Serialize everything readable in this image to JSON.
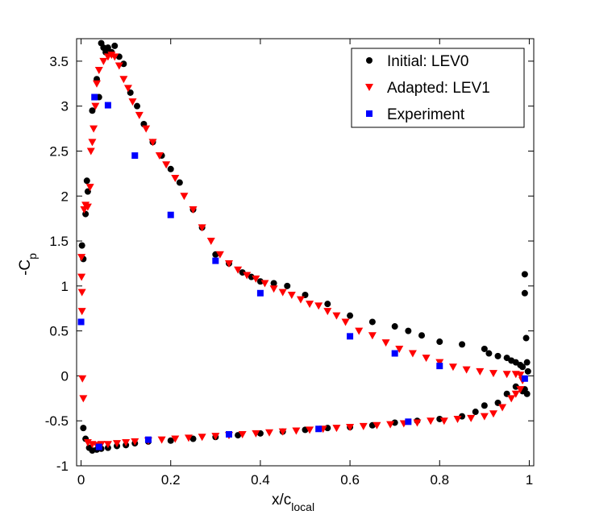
{
  "chart_data": {
    "type": "scatter",
    "xlabel": "x/c",
    "xlabel_sub": "local",
    "ylabel": "-C",
    "ylabel_sub": "p",
    "xlim": [
      -0.01,
      1.01
    ],
    "ylim": [
      -1,
      3.75
    ],
    "xticks": [
      0,
      0.2,
      0.4,
      0.6,
      0.8,
      1
    ],
    "xtick_labels": [
      "0",
      "0.2",
      "0.4",
      "0.6",
      "0.8",
      "1"
    ],
    "yticks": [
      -1,
      -0.5,
      0,
      0.5,
      1,
      1.5,
      2,
      2.5,
      3,
      3.5
    ],
    "ytick_labels": [
      "-1",
      "-0.5",
      "0",
      "0.5",
      "1",
      "1.5",
      "2",
      "2.5",
      "3",
      "3.5"
    ],
    "legend_position": "top-right",
    "series": [
      {
        "name": "Initial: LEV0",
        "marker": "circle",
        "color": "#000000",
        "points": [
          [
            0.002,
            1.45
          ],
          [
            0.005,
            1.3
          ],
          [
            0.01,
            1.8
          ],
          [
            0.013,
            2.17
          ],
          [
            0.015,
            2.05
          ],
          [
            0.025,
            2.95
          ],
          [
            0.035,
            3.3
          ],
          [
            0.04,
            3.1
          ],
          [
            0.045,
            3.7
          ],
          [
            0.05,
            3.65
          ],
          [
            0.055,
            3.6
          ],
          [
            0.06,
            3.65
          ],
          [
            0.068,
            3.6
          ],
          [
            0.075,
            3.67
          ],
          [
            0.085,
            3.55
          ],
          [
            0.095,
            3.47
          ],
          [
            0.11,
            3.15
          ],
          [
            0.125,
            3.0
          ],
          [
            0.14,
            2.8
          ],
          [
            0.16,
            2.6
          ],
          [
            0.18,
            2.45
          ],
          [
            0.2,
            2.3
          ],
          [
            0.22,
            2.15
          ],
          [
            0.25,
            1.85
          ],
          [
            0.27,
            1.65
          ],
          [
            0.3,
            1.35
          ],
          [
            0.33,
            1.25
          ],
          [
            0.36,
            1.15
          ],
          [
            0.38,
            1.1
          ],
          [
            0.4,
            1.05
          ],
          [
            0.43,
            1.03
          ],
          [
            0.46,
            1.0
          ],
          [
            0.5,
            0.9
          ],
          [
            0.55,
            0.8
          ],
          [
            0.6,
            0.67
          ],
          [
            0.65,
            0.6
          ],
          [
            0.7,
            0.55
          ],
          [
            0.73,
            0.5
          ],
          [
            0.76,
            0.45
          ],
          [
            0.8,
            0.38
          ],
          [
            0.85,
            0.35
          ],
          [
            0.9,
            0.3
          ],
          [
            0.91,
            0.25
          ],
          [
            0.93,
            0.22
          ],
          [
            0.95,
            0.2
          ],
          [
            0.96,
            0.17
          ],
          [
            0.97,
            0.15
          ],
          [
            0.98,
            0.12
          ],
          [
            0.985,
            0.1
          ],
          [
            0.99,
            0.92
          ],
          [
            0.99,
            1.13
          ],
          [
            0.993,
            0.42
          ],
          [
            0.995,
            0.15
          ],
          [
            0.997,
            0.05
          ],
          [
            0.995,
            -0.2
          ],
          [
            0.99,
            -0.15
          ],
          [
            0.985,
            -0.17
          ],
          [
            0.97,
            -0.12
          ],
          [
            0.95,
            -0.2
          ],
          [
            0.93,
            -0.3
          ],
          [
            0.9,
            -0.33
          ],
          [
            0.88,
            -0.4
          ],
          [
            0.85,
            -0.45
          ],
          [
            0.8,
            -0.48
          ],
          [
            0.75,
            -0.5
          ],
          [
            0.7,
            -0.52
          ],
          [
            0.65,
            -0.55
          ],
          [
            0.6,
            -0.57
          ],
          [
            0.55,
            -0.58
          ],
          [
            0.5,
            -0.6
          ],
          [
            0.45,
            -0.62
          ],
          [
            0.4,
            -0.64
          ],
          [
            0.35,
            -0.66
          ],
          [
            0.3,
            -0.68
          ],
          [
            0.25,
            -0.7
          ],
          [
            0.2,
            -0.72
          ],
          [
            0.15,
            -0.73
          ],
          [
            0.12,
            -0.75
          ],
          [
            0.1,
            -0.77
          ],
          [
            0.08,
            -0.78
          ],
          [
            0.06,
            -0.8
          ],
          [
            0.045,
            -0.81
          ],
          [
            0.035,
            -0.82
          ],
          [
            0.025,
            -0.83
          ],
          [
            0.018,
            -0.8
          ],
          [
            0.01,
            -0.7
          ],
          [
            0.005,
            -0.58
          ]
        ]
      },
      {
        "name": "Adapted: LEV1",
        "marker": "triangle-down",
        "color": "#ff0000",
        "points": [
          [
            0.001,
            1.32
          ],
          [
            0.001,
            1.1
          ],
          [
            0.002,
            0.93
          ],
          [
            0.002,
            0.72
          ],
          [
            0.003,
            -0.03
          ],
          [
            0.005,
            -0.25
          ],
          [
            0.007,
            1.85
          ],
          [
            0.01,
            1.9
          ],
          [
            0.015,
            1.88
          ],
          [
            0.02,
            2.1
          ],
          [
            0.022,
            2.5
          ],
          [
            0.025,
            2.6
          ],
          [
            0.028,
            2.75
          ],
          [
            0.032,
            3.0
          ],
          [
            0.035,
            3.25
          ],
          [
            0.04,
            3.4
          ],
          [
            0.05,
            3.5
          ],
          [
            0.06,
            3.55
          ],
          [
            0.068,
            3.57
          ],
          [
            0.075,
            3.55
          ],
          [
            0.085,
            3.45
          ],
          [
            0.095,
            3.3
          ],
          [
            0.105,
            3.2
          ],
          [
            0.115,
            3.05
          ],
          [
            0.13,
            2.9
          ],
          [
            0.145,
            2.75
          ],
          [
            0.16,
            2.6
          ],
          [
            0.175,
            2.45
          ],
          [
            0.19,
            2.35
          ],
          [
            0.21,
            2.2
          ],
          [
            0.23,
            2.0
          ],
          [
            0.25,
            1.85
          ],
          [
            0.27,
            1.65
          ],
          [
            0.29,
            1.5
          ],
          [
            0.31,
            1.35
          ],
          [
            0.33,
            1.25
          ],
          [
            0.35,
            1.18
          ],
          [
            0.37,
            1.12
          ],
          [
            0.39,
            1.08
          ],
          [
            0.41,
            1.03
          ],
          [
            0.43,
            0.97
          ],
          [
            0.45,
            0.93
          ],
          [
            0.47,
            0.9
          ],
          [
            0.49,
            0.85
          ],
          [
            0.51,
            0.8
          ],
          [
            0.53,
            0.78
          ],
          [
            0.55,
            0.72
          ],
          [
            0.57,
            0.67
          ],
          [
            0.59,
            0.6
          ],
          [
            0.62,
            0.5
          ],
          [
            0.65,
            0.45
          ],
          [
            0.68,
            0.37
          ],
          [
            0.71,
            0.3
          ],
          [
            0.74,
            0.25
          ],
          [
            0.77,
            0.2
          ],
          [
            0.8,
            0.15
          ],
          [
            0.83,
            0.1
          ],
          [
            0.86,
            0.07
          ],
          [
            0.89,
            0.05
          ],
          [
            0.92,
            0.03
          ],
          [
            0.95,
            0.02
          ],
          [
            0.97,
            0.02
          ],
          [
            0.98,
            0.01
          ],
          [
            0.985,
            -0.05
          ],
          [
            0.98,
            -0.15
          ],
          [
            0.97,
            -0.2
          ],
          [
            0.96,
            -0.25
          ],
          [
            0.94,
            -0.35
          ],
          [
            0.92,
            -0.42
          ],
          [
            0.9,
            -0.45
          ],
          [
            0.87,
            -0.47
          ],
          [
            0.84,
            -0.48
          ],
          [
            0.81,
            -0.5
          ],
          [
            0.78,
            -0.5
          ],
          [
            0.75,
            -0.52
          ],
          [
            0.72,
            -0.53
          ],
          [
            0.69,
            -0.54
          ],
          [
            0.66,
            -0.55
          ],
          [
            0.63,
            -0.56
          ],
          [
            0.6,
            -0.57
          ],
          [
            0.57,
            -0.58
          ],
          [
            0.54,
            -0.59
          ],
          [
            0.51,
            -0.6
          ],
          [
            0.48,
            -0.61
          ],
          [
            0.45,
            -0.62
          ],
          [
            0.42,
            -0.63
          ],
          [
            0.39,
            -0.64
          ],
          [
            0.36,
            -0.65
          ],
          [
            0.33,
            -0.66
          ],
          [
            0.3,
            -0.67
          ],
          [
            0.27,
            -0.68
          ],
          [
            0.24,
            -0.69
          ],
          [
            0.21,
            -0.7
          ],
          [
            0.18,
            -0.71
          ],
          [
            0.15,
            -0.72
          ],
          [
            0.12,
            -0.73
          ],
          [
            0.1,
            -0.74
          ],
          [
            0.08,
            -0.75
          ],
          [
            0.06,
            -0.76
          ],
          [
            0.045,
            -0.76
          ],
          [
            0.035,
            -0.77
          ],
          [
            0.025,
            -0.76
          ],
          [
            0.015,
            -0.74
          ]
        ]
      },
      {
        "name": "Experiment",
        "marker": "square",
        "color": "#0000ff",
        "points": [
          [
            0.0,
            0.6
          ],
          [
            0.03,
            3.1
          ],
          [
            0.06,
            3.01
          ],
          [
            0.12,
            2.45
          ],
          [
            0.2,
            1.79
          ],
          [
            0.3,
            1.28
          ],
          [
            0.4,
            0.92
          ],
          [
            0.6,
            0.44
          ],
          [
            0.7,
            0.25
          ],
          [
            0.8,
            0.11
          ],
          [
            0.99,
            -0.03
          ],
          [
            0.73,
            -0.51
          ],
          [
            0.53,
            -0.59
          ],
          [
            0.33,
            -0.65
          ],
          [
            0.15,
            -0.71
          ],
          [
            0.04,
            -0.79
          ]
        ]
      }
    ]
  }
}
